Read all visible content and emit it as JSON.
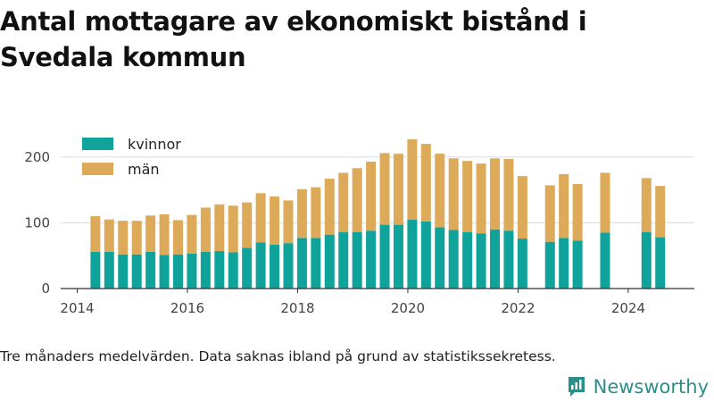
{
  "chart_data": {
    "type": "bar",
    "stacked": true,
    "title": "Antal mottagare av ekonomiskt bistånd i Svedala kommun",
    "xlabel": "",
    "ylabel": "",
    "xlim": [
      2013.7,
      2025.2
    ],
    "ylim": [
      0,
      235
    ],
    "x_ticks": [
      2014,
      2016,
      2018,
      2020,
      2022,
      2024
    ],
    "y_ticks": [
      0,
      100,
      200
    ],
    "grid": "horizontal",
    "legend_position": "top-left",
    "colors": {
      "kvinnor": "#0fa39b",
      "man": "#ddaa5a"
    },
    "x": [
      2014.33,
      2014.58,
      2014.83,
      2015.08,
      2015.33,
      2015.58,
      2015.83,
      2016.08,
      2016.33,
      2016.58,
      2016.83,
      2017.08,
      2017.33,
      2017.58,
      2017.83,
      2018.08,
      2018.33,
      2018.58,
      2018.83,
      2019.08,
      2019.33,
      2019.58,
      2019.83,
      2020.08,
      2020.33,
      2020.58,
      2020.83,
      2021.08,
      2021.33,
      2021.58,
      2021.83,
      2022.08,
      2022.58,
      2022.83,
      2023.08,
      2023.58,
      2024.33,
      2024.58
    ],
    "series": [
      {
        "name": "kvinnor",
        "values": [
          56,
          56,
          52,
          52,
          56,
          51,
          52,
          53,
          56,
          57,
          55,
          62,
          70,
          67,
          69,
          77,
          77,
          82,
          86,
          86,
          88,
          97,
          97,
          105,
          102,
          93,
          89,
          86,
          84,
          90,
          88,
          76,
          71,
          77,
          73,
          85,
          86,
          78
        ]
      },
      {
        "name": "män",
        "values": [
          54,
          49,
          51,
          51,
          55,
          62,
          52,
          59,
          67,
          71,
          71,
          69,
          75,
          73,
          65,
          74,
          77,
          85,
          90,
          97,
          105,
          109,
          108,
          122,
          118,
          112,
          109,
          108,
          106,
          108,
          109,
          95,
          86,
          97,
          86,
          91,
          82,
          78
        ]
      }
    ],
    "note": "Tre månaders medelvärden. Data saknas ibland på grund av statistikssekretess."
  },
  "footer": {
    "brand": "Newsworthy"
  },
  "icons": {
    "brand_logo": "newsworthy-logo-icon"
  }
}
